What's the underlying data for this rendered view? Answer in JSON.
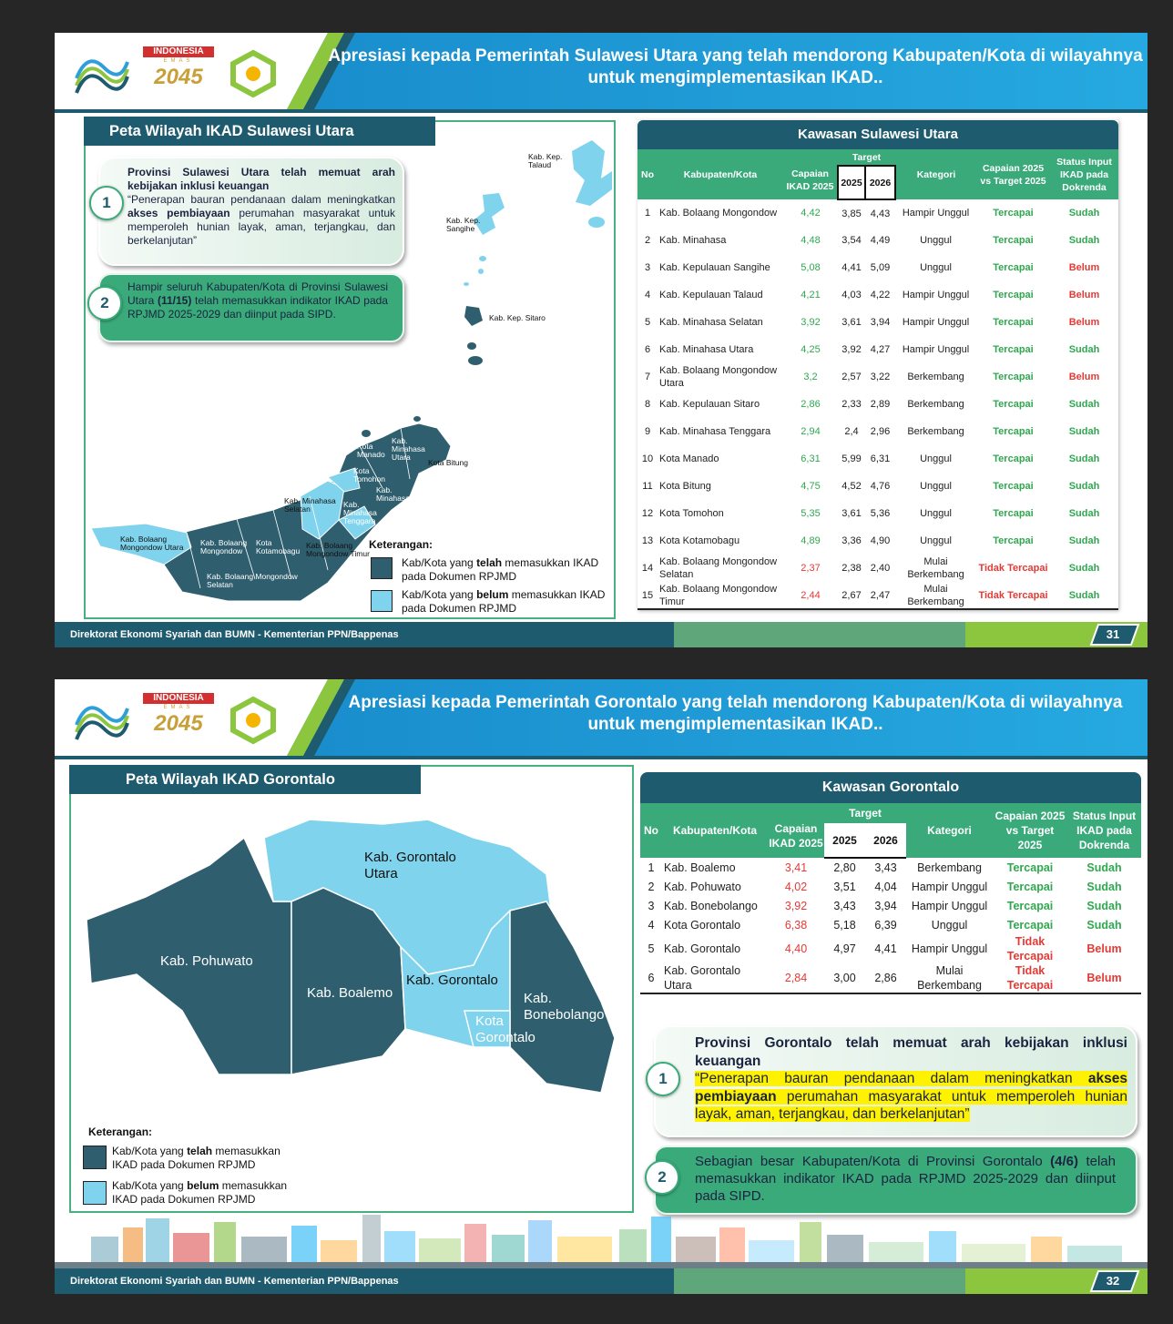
{
  "slides": [
    {
      "logo": {
        "top": "INDONESIA",
        "middle": "EMAS",
        "year": "2045"
      },
      "title": "Apresiasi kepada Pemerintah Sulawesi Utara yang telah mendorong Kabupaten/Kota di wilayahnya untuk mengimplementasikan IKAD..",
      "map_title": "Peta Wilayah IKAD Sulawesi Utara",
      "points": [
        {
          "number": "1",
          "heading": "Provinsi Sulawesi Utara telah memuat arah kebijakan inklusi keuangan",
          "before": "“Penerapan bauran pendanaan dalam meningkatkan ",
          "bold": "akses pembiayaan",
          "after": " perumahan masyarakat untuk memperoleh hunian layak, aman, terjangkau, dan berkelanjutan”"
        },
        {
          "number": "2",
          "before": "Hampir seluruh Kabupaten/Kota di Provinsi Sulawesi Utara ",
          "bold": "(11/15)",
          "after": " telah memasukkan indikator IKAD pada RPJMD 2025-2029 dan diinput pada SIPD."
        }
      ],
      "map_labels": [
        "Kab. Kep. Talaud",
        "Kab. Kep. Sangihe",
        "Kab. Kep. Sitaro",
        "Kab. Minahasa Utara",
        "Kota Manado",
        "Kota Bitung",
        "Kota Tomohon",
        "Kab. Minahasa",
        "Kab. Minahasa Selatan",
        "Kab. Minahasa Tenggara",
        "Kab. Bolaang Mongondow Utara",
        "Kab. Bolaang Mongondow",
        "Kota Kotamobagu",
        "Kab. Bolaang Mongondow Timur",
        "Kab. Bolaang Mongondow Selatan"
      ],
      "legend": {
        "title": "Keterangan:",
        "items": [
          {
            "before": "Kab/Kota yang ",
            "bold": "telah",
            "after": " memasukkan IKAD pada Dokumen RPJMD",
            "color": "#2f5f6e"
          },
          {
            "before": "Kab/Kota yang ",
            "bold": "belum",
            "after": " memasukkan IKAD pada Dokumen RPJMD",
            "color": "#7fd3ec"
          }
        ]
      },
      "table": {
        "title": "Kawasan Sulawesi Utara",
        "headers": [
          "No",
          "Kabupaten/Kota",
          "Capaian IKAD 2025",
          "Target",
          "Kategori",
          "Capaian 2025 vs Target 2025",
          "Status Input IKAD pada Dokrenda"
        ],
        "subheaders": [
          "2025",
          "2026"
        ],
        "rows": [
          {
            "cells": [
              "1",
              "Kab. Bolaang Mongondow",
              "4,42",
              "3,85",
              "4,43",
              "Hampir Unggul",
              "Tercapai",
              "Sudah"
            ],
            "capaian_color": "#2fa84f",
            "vs_color": "#2fa84f",
            "status_color": "#2fa84f"
          },
          {
            "cells": [
              "2",
              "Kab. Minahasa",
              "4,48",
              "3,54",
              "4,49",
              "Unggul",
              "Tercapai",
              "Sudah"
            ],
            "capaian_color": "#2fa84f",
            "vs_color": "#2fa84f",
            "status_color": "#2fa84f"
          },
          {
            "cells": [
              "3",
              "Kab. Kepulauan Sangihe",
              "5,08",
              "4,41",
              "5,09",
              "Unggul",
              "Tercapai",
              "Belum"
            ],
            "capaian_color": "#2fa84f",
            "vs_color": "#2fa84f",
            "status_color": "#e53935"
          },
          {
            "cells": [
              "4",
              "Kab. Kepulauan Talaud",
              "4,21",
              "4,03",
              "4,22",
              "Hampir Unggul",
              "Tercapai",
              "Belum"
            ],
            "capaian_color": "#2fa84f",
            "vs_color": "#2fa84f",
            "status_color": "#e53935"
          },
          {
            "cells": [
              "5",
              "Kab. Minahasa Selatan",
              "3,92",
              "3,61",
              "3,94",
              "Hampir Unggul",
              "Tercapai",
              "Belum"
            ],
            "capaian_color": "#2fa84f",
            "vs_color": "#2fa84f",
            "status_color": "#e53935"
          },
          {
            "cells": [
              "6",
              "Kab. Minahasa Utara",
              "4,25",
              "3,92",
              "4,27",
              "Hampir Unggul",
              "Tercapai",
              "Sudah"
            ],
            "capaian_color": "#2fa84f",
            "vs_color": "#2fa84f",
            "status_color": "#2fa84f"
          },
          {
            "cells": [
              "7",
              "Kab. Bolaang Mongondow Utara",
              "3,2",
              "2,57",
              "3,22",
              "Berkembang",
              "Tercapai",
              "Belum"
            ],
            "capaian_color": "#2fa84f",
            "vs_color": "#2fa84f",
            "status_color": "#e53935"
          },
          {
            "cells": [
              "8",
              "Kab. Kepulauan Sitaro",
              "2,86",
              "2,33",
              "2,89",
              "Berkembang",
              "Tercapai",
              "Sudah"
            ],
            "capaian_color": "#2fa84f",
            "vs_color": "#2fa84f",
            "status_color": "#2fa84f"
          },
          {
            "cells": [
              "9",
              "Kab. Minahasa Tenggara",
              "2,94",
              "2,4",
              "2,96",
              "Berkembang",
              "Tercapai",
              "Sudah"
            ],
            "capaian_color": "#2fa84f",
            "vs_color": "#2fa84f",
            "status_color": "#2fa84f"
          },
          {
            "cells": [
              "10",
              "Kota Manado",
              "6,31",
              "5,99",
              "6,31",
              "Unggul",
              "Tercapai",
              "Sudah"
            ],
            "capaian_color": "#2fa84f",
            "vs_color": "#2fa84f",
            "status_color": "#2fa84f"
          },
          {
            "cells": [
              "11",
              "Kota Bitung",
              "4,75",
              "4,52",
              "4,76",
              "Unggul",
              "Tercapai",
              "Sudah"
            ],
            "capaian_color": "#2fa84f",
            "vs_color": "#2fa84f",
            "status_color": "#2fa84f"
          },
          {
            "cells": [
              "12",
              "Kota Tomohon",
              "5,35",
              "3,61",
              "5,36",
              "Unggul",
              "Tercapai",
              "Sudah"
            ],
            "capaian_color": "#2fa84f",
            "vs_color": "#2fa84f",
            "status_color": "#2fa84f"
          },
          {
            "cells": [
              "13",
              "Kota Kotamobagu",
              "4,89",
              "3,36",
              "4,90",
              "Unggul",
              "Tercapai",
              "Sudah"
            ],
            "capaian_color": "#2fa84f",
            "vs_color": "#2fa84f",
            "status_color": "#2fa84f"
          },
          {
            "cells": [
              "14",
              "Kab. Bolaang Mongondow Selatan",
              "2,37",
              "2,38",
              "2,40",
              "Mulai Berkembang",
              "Tidak Tercapai",
              "Sudah"
            ],
            "capaian_color": "#e53935",
            "vs_color": "#e53935",
            "status_color": "#2fa84f"
          },
          {
            "cells": [
              "15",
              "Kab. Bolaang Mongondow Timur",
              "2,44",
              "2,67",
              "2,47",
              "Mulai Berkembang",
              "Tidak Tercapai",
              "Sudah"
            ],
            "capaian_color": "#e53935",
            "vs_color": "#e53935",
            "status_color": "#2fa84f"
          }
        ]
      },
      "footer": "Direktorat Ekonomi Syariah dan BUMN - Kementerian PPN/Bappenas",
      "page": "31"
    },
    {
      "logo": {
        "top": "INDONESIA",
        "middle": "EMAS",
        "year": "2045"
      },
      "title": "Apresiasi kepada Pemerintah Gorontalo yang telah mendorong Kabupaten/Kota di wilayahnya untuk mengimplementasikan IKAD..",
      "map_title": "Peta Wilayah IKAD Gorontalo",
      "points": [
        {
          "number": "1",
          "heading": "Provinsi Gorontalo telah memuat arah kebijakan inklusi keuangan",
          "before": "“Penerapan bauran pendanaan dalam meningkatkan ",
          "bold": "akses pembiayaan",
          "after": " perumahan masyarakat untuk memperoleh hunian layak, aman, terjangkau, dan berkelanjutan”"
        },
        {
          "number": "2",
          "before": "Sebagian besar Kabupaten/Kota di Provinsi Gorontalo ",
          "bold": "(4/6)",
          "after": " telah memasukkan indikator IKAD pada RPJMD 2025-2029 dan diinput pada SIPD."
        }
      ],
      "map_labels": [
        "Kab. Gorontalo Utara",
        "Kab. Pohuwato",
        "Kab. Boalemo",
        "Kab. Gorontalo",
        "Kab. Bonebolango",
        "Kota Gorontalo"
      ],
      "legend": {
        "title": "Keterangan:",
        "items": [
          {
            "before": "Kab/Kota yang ",
            "bold": "telah",
            "after": " memasukkan IKAD pada Dokumen RPJMD",
            "color": "#2f5f6e"
          },
          {
            "before": "Kab/Kota yang ",
            "bold": "belum",
            "after": " memasukkan IKAD pada Dokumen RPJMD",
            "color": "#7fd3ec"
          }
        ]
      },
      "table": {
        "title": "Kawasan Gorontalo",
        "headers": [
          "No",
          "Kabupaten/Kota",
          "Capaian IKAD 2025",
          "Target",
          "Kategori",
          "Capaian 2025 vs Target 2025",
          "Status Input IKAD pada Dokrenda"
        ],
        "subheaders": [
          "2025",
          "2026"
        ],
        "rows": [
          {
            "cells": [
              "1",
              "Kab. Boalemo",
              "3,41",
              "2,80",
              "3,43",
              "Berkembang",
              "Tercapai",
              "Sudah"
            ],
            "capaian_color": "#e53935",
            "vs_color": "#2fa84f",
            "status_color": "#2fa84f"
          },
          {
            "cells": [
              "2",
              "Kab. Pohuwato",
              "4,02",
              "3,51",
              "4,04",
              "Hampir Unggul",
              "Tercapai",
              "Sudah"
            ],
            "capaian_color": "#e53935",
            "vs_color": "#2fa84f",
            "status_color": "#2fa84f"
          },
          {
            "cells": [
              "3",
              "Kab. Bonebolango",
              "3,92",
              "3,43",
              "3,94",
              "Hampir Unggul",
              "Tercapai",
              "Sudah"
            ],
            "capaian_color": "#e53935",
            "vs_color": "#2fa84f",
            "status_color": "#2fa84f"
          },
          {
            "cells": [
              "4",
              "Kota Gorontalo",
              "6,38",
              "5,18",
              "6,39",
              "Unggul",
              "Tercapai",
              "Sudah"
            ],
            "capaian_color": "#e53935",
            "vs_color": "#2fa84f",
            "status_color": "#2fa84f"
          },
          {
            "cells": [
              "5",
              "Kab. Gorontalo",
              "4,40",
              "4,97",
              "4,41",
              "Hampir Unggul",
              "Tidak Tercapai",
              "Belum"
            ],
            "capaian_color": "#e53935",
            "vs_color": "#e53935",
            "status_color": "#e53935"
          },
          {
            "cells": [
              "6",
              "Kab. Gorontalo Utara",
              "2,84",
              "3,00",
              "2,86",
              "Mulai Berkembang",
              "Tidak Tercapai",
              "Belum"
            ],
            "capaian_color": "#e53935",
            "vs_color": "#e53935",
            "status_color": "#e53935"
          }
        ]
      },
      "footer": "Direktorat Ekonomi Syariah dan BUMN - Kementerian PPN/Bappenas",
      "page": "32"
    }
  ]
}
